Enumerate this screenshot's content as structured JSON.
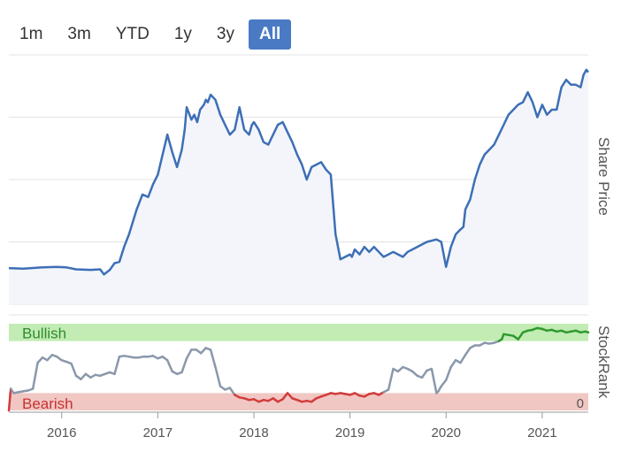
{
  "range_buttons": [
    {
      "label": "1m",
      "active": false
    },
    {
      "label": "3m",
      "active": false
    },
    {
      "label": "YTD",
      "active": false
    },
    {
      "label": "1y",
      "active": false
    },
    {
      "label": "3y",
      "active": false
    },
    {
      "label": "All",
      "active": true
    }
  ],
  "colors": {
    "price_line": "#3d6fb6",
    "price_fill": "#f3f5fa",
    "grid": "#e3e3e3",
    "bullish_band": "#c2ecb4",
    "bearish_band": "#f0c7c3",
    "rank_neutral": "#8a98ab",
    "rank_bullish": "#2e9a2e",
    "rank_bearish": "#d23c3c",
    "bullish_text": "#2e8b2e",
    "bearish_text": "#c83232"
  },
  "chart_data": [
    {
      "type": "line",
      "name": "price-chart",
      "ylabel": "Share Price",
      "ylim": [
        0,
        1000
      ],
      "yticks": [
        0,
        250,
        500,
        750
      ],
      "xlim": [
        2015.45,
        2021.48
      ],
      "grid": true,
      "series": [
        {
          "name": "",
          "x": [
            2015.45,
            2015.6,
            2015.8,
            2015.95,
            2016.05,
            2016.15,
            2016.3,
            2016.4,
            2016.44,
            2016.5,
            2016.55,
            2016.6,
            2016.65,
            2016.7,
            2016.78,
            2016.84,
            2016.9,
            2016.95,
            2017.0,
            2017.05,
            2017.1,
            2017.15,
            2017.2,
            2017.25,
            2017.28,
            2017.3,
            2017.35,
            2017.38,
            2017.41,
            2017.44,
            2017.48,
            2017.5,
            2017.52,
            2017.55,
            2017.6,
            2017.65,
            2017.7,
            2017.75,
            2017.8,
            2017.85,
            2017.9,
            2017.95,
            2017.98,
            2018.0,
            2018.05,
            2018.1,
            2018.15,
            2018.2,
            2018.25,
            2018.3,
            2018.35,
            2018.4,
            2018.45,
            2018.5,
            2018.55,
            2018.6,
            2018.65,
            2018.7,
            2018.75,
            2018.8,
            2018.85,
            2018.9,
            2018.95,
            2019.0,
            2019.02,
            2019.05,
            2019.1,
            2019.15,
            2019.2,
            2019.25,
            2019.3,
            2019.35,
            2019.4,
            2019.45,
            2019.5,
            2019.55,
            2019.6,
            2019.7,
            2019.8,
            2019.9,
            2019.95,
            2020.0,
            2020.05,
            2020.1,
            2020.15,
            2020.18,
            2020.2,
            2020.25,
            2020.3,
            2020.35,
            2020.4,
            2020.45,
            2020.5,
            2020.55,
            2020.6,
            2020.65,
            2020.7,
            2020.75,
            2020.8,
            2020.85,
            2020.9,
            2020.95,
            2021.0,
            2021.05,
            2021.1,
            2021.15,
            2021.2,
            2021.25,
            2021.3,
            2021.35,
            2021.4,
            2021.43,
            2021.46,
            2021.48
          ],
          "values": [
            145,
            143,
            148,
            150,
            148,
            140,
            138,
            140,
            120,
            138,
            165,
            170,
            230,
            280,
            380,
            440,
            430,
            480,
            520,
            600,
            680,
            610,
            550,
            620,
            700,
            790,
            740,
            760,
            730,
            780,
            800,
            820,
            810,
            840,
            820,
            760,
            720,
            680,
            700,
            790,
            700,
            680,
            720,
            730,
            700,
            650,
            640,
            680,
            720,
            730,
            690,
            650,
            600,
            560,
            500,
            550,
            560,
            570,
            540,
            520,
            280,
            180,
            190,
            200,
            190,
            220,
            200,
            230,
            210,
            230,
            210,
            190,
            200,
            210,
            200,
            190,
            210,
            230,
            250,
            260,
            250,
            150,
            230,
            280,
            300,
            310,
            380,
            420,
            500,
            560,
            600,
            620,
            640,
            680,
            720,
            760,
            780,
            800,
            810,
            850,
            810,
            750,
            800,
            760,
            780,
            780,
            870,
            900,
            880,
            880,
            870,
            920,
            940,
            930
          ]
        }
      ]
    },
    {
      "type": "line",
      "name": "stockrank-chart",
      "ylabel": "StockRank",
      "ylim": [
        0,
        100
      ],
      "yticks": [
        0
      ],
      "bands": [
        {
          "label": "Bullish",
          "from": 80,
          "to": 100
        },
        {
          "label": "Bearish",
          "from": 0,
          "to": 20
        }
      ],
      "xticks": [
        "2016",
        "2017",
        "2018",
        "2019",
        "2020",
        "2021"
      ],
      "series": [
        {
          "name": "",
          "x": [
            2015.45,
            2015.47,
            2015.5,
            2015.55,
            2015.6,
            2015.65,
            2015.7,
            2015.75,
            2015.8,
            2015.85,
            2015.9,
            2015.95,
            2016.0,
            2016.05,
            2016.1,
            2016.15,
            2016.2,
            2016.25,
            2016.3,
            2016.35,
            2016.4,
            2016.45,
            2016.5,
            2016.55,
            2016.6,
            2016.65,
            2016.7,
            2016.75,
            2016.8,
            2016.85,
            2016.9,
            2016.95,
            2017.0,
            2017.05,
            2017.1,
            2017.15,
            2017.2,
            2017.25,
            2017.3,
            2017.35,
            2017.4,
            2017.45,
            2017.5,
            2017.55,
            2017.6,
            2017.65,
            2017.7,
            2017.75,
            2017.8,
            2017.85,
            2017.9,
            2017.95,
            2018.0,
            2018.05,
            2018.1,
            2018.15,
            2018.2,
            2018.25,
            2018.3,
            2018.35,
            2018.4,
            2018.45,
            2018.5,
            2018.55,
            2018.6,
            2018.65,
            2018.7,
            2018.75,
            2018.8,
            2018.85,
            2018.9,
            2018.95,
            2019.0,
            2019.05,
            2019.1,
            2019.15,
            2019.2,
            2019.25,
            2019.3,
            2019.35,
            2019.4,
            2019.45,
            2019.5,
            2019.55,
            2019.6,
            2019.65,
            2019.7,
            2019.75,
            2019.8,
            2019.85,
            2019.9,
            2019.92,
            2019.95,
            2020.0,
            2020.05,
            2020.1,
            2020.15,
            2020.2,
            2020.25,
            2020.3,
            2020.35,
            2020.4,
            2020.45,
            2020.5,
            2020.55,
            2020.58,
            2020.6,
            2020.65,
            2020.7,
            2020.75,
            2020.8,
            2020.85,
            2020.9,
            2020.92,
            2020.95,
            2021.0,
            2021.05,
            2021.1,
            2021.15,
            2021.2,
            2021.25,
            2021.3,
            2021.35,
            2021.4,
            2021.45,
            2021.48
          ],
          "values": [
            0,
            25,
            20,
            21,
            22,
            23,
            25,
            55,
            61,
            58,
            64,
            62,
            58,
            56,
            54,
            40,
            36,
            42,
            38,
            41,
            40,
            42,
            44,
            42,
            62,
            63,
            62,
            61,
            61,
            62,
            62,
            63,
            60,
            62,
            58,
            45,
            42,
            44,
            60,
            70,
            70,
            66,
            72,
            70,
            50,
            28,
            24,
            26,
            18,
            15,
            14,
            12,
            13,
            10,
            12,
            11,
            14,
            10,
            13,
            20,
            14,
            12,
            10,
            11,
            10,
            14,
            16,
            18,
            20,
            19,
            20,
            19,
            18,
            20,
            17,
            16,
            19,
            20,
            18,
            21,
            24,
            48,
            45,
            50,
            48,
            45,
            40,
            38,
            46,
            48,
            20,
            22,
            28,
            35,
            50,
            58,
            55,
            64,
            72,
            75,
            75,
            78,
            77,
            78,
            80,
            82,
            88,
            87,
            86,
            82,
            90,
            92,
            93,
            94,
            95,
            94,
            92,
            93,
            91,
            92,
            90,
            91,
            92,
            90,
            91,
            90
          ]
        }
      ]
    }
  ]
}
